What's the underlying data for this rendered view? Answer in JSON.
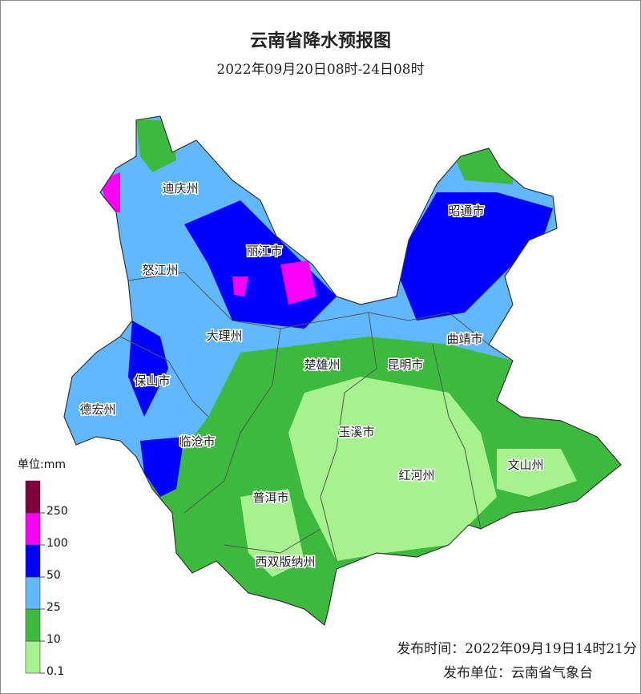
{
  "header": {
    "title": "云南省降水预报图",
    "subtitle": "2022年09月20日08时-24日08时"
  },
  "regions": [
    "迪庆州",
    "丽江市",
    "昭通市",
    "怒江州",
    "大理州",
    "曲靖市",
    "楚雄州",
    "昆明市",
    "保山市",
    "德宏州",
    "玉溪市",
    "临沧市",
    "红河州",
    "文山州",
    "普洱市",
    "西双版纳州"
  ],
  "legend": {
    "unit": "单位:mm",
    "colors": [
      "#a6f28f",
      "#3dba3d",
      "#61b8ff",
      "#0000fe",
      "#fa00fa",
      "#800040"
    ],
    "ticks": [
      0.1,
      10,
      25,
      50,
      100,
      250
    ]
  },
  "footer": {
    "issue_time": "发布时间：2022年09月19日14时21分",
    "issuer": "发布单位：云南省气象台"
  }
}
